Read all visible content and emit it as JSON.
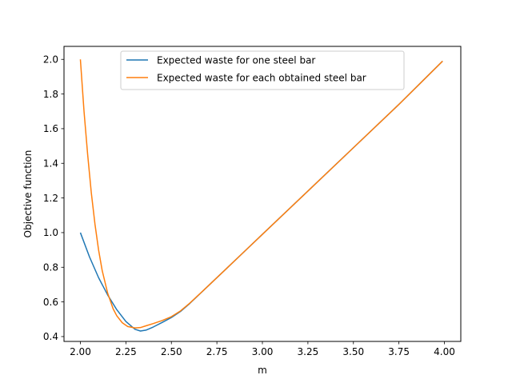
{
  "chart_data": {
    "type": "line",
    "title": "",
    "xlabel": "m",
    "ylabel": "Objective function",
    "xlim": [
      1.91,
      4.09
    ],
    "ylim": [
      0.372,
      2.075
    ],
    "grid": false,
    "legend_position": "top-center",
    "x_ticks": [
      "2.00",
      "2.25",
      "2.50",
      "2.75",
      "3.00",
      "3.25",
      "3.50",
      "3.75",
      "4.00"
    ],
    "y_ticks": [
      "0.4",
      "0.6",
      "0.8",
      "1.0",
      "1.2",
      "1.4",
      "1.6",
      "1.8",
      "2.0"
    ],
    "x_tick_values": [
      2.0,
      2.25,
      2.5,
      2.75,
      3.0,
      3.25,
      3.5,
      3.75,
      4.0
    ],
    "y_tick_values": [
      0.4,
      0.6,
      0.8,
      1.0,
      1.2,
      1.4,
      1.6,
      1.8,
      2.0
    ],
    "series": [
      {
        "name": "Expected waste for one steel bar",
        "color": "#1f77b4",
        "x": [
          2.0,
          2.05,
          2.1,
          2.15,
          2.2,
          2.25,
          2.3,
          2.33,
          2.36,
          2.4,
          2.45,
          2.5,
          2.55,
          2.6,
          2.7,
          2.8,
          2.9,
          3.0,
          3.25,
          3.5,
          3.75,
          3.99
        ],
        "y": [
          1.0,
          0.86,
          0.74,
          0.64,
          0.555,
          0.487,
          0.442,
          0.432,
          0.437,
          0.455,
          0.482,
          0.51,
          0.545,
          0.59,
          0.69,
          0.79,
          0.89,
          0.99,
          1.24,
          1.49,
          1.74,
          1.99
        ]
      },
      {
        "name": "Expected waste for each obtained steel bar",
        "color": "#ff7f0e",
        "x": [
          2.0,
          2.02,
          2.04,
          2.06,
          2.08,
          2.1,
          2.12,
          2.15,
          2.18,
          2.2,
          2.23,
          2.26,
          2.3,
          2.33,
          2.36,
          2.4,
          2.45,
          2.5,
          2.55,
          2.6,
          2.7,
          2.8,
          2.9,
          3.0,
          3.25,
          3.5,
          3.75,
          3.99
        ],
        "y": [
          2.0,
          1.7,
          1.45,
          1.23,
          1.05,
          0.9,
          0.78,
          0.65,
          0.56,
          0.52,
          0.48,
          0.458,
          0.45,
          0.452,
          0.462,
          0.475,
          0.493,
          0.515,
          0.548,
          0.592,
          0.69,
          0.79,
          0.89,
          0.99,
          1.24,
          1.49,
          1.74,
          1.99
        ]
      }
    ]
  }
}
